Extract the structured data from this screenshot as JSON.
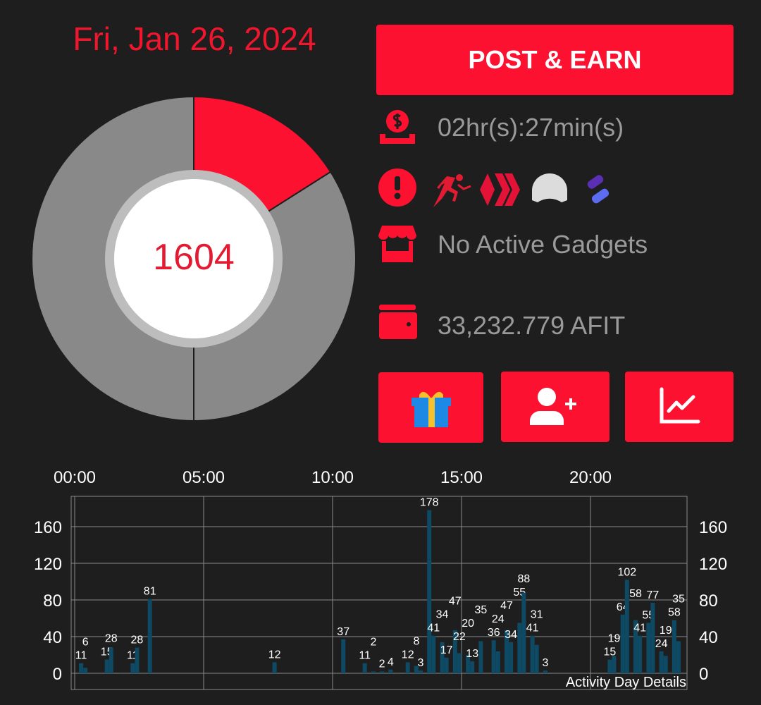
{
  "header": {
    "date": "Fri, Jan 26, 2024"
  },
  "donut": {
    "center_value": "1604",
    "slices": [
      {
        "fraction": 0.16,
        "color": "#fd1130"
      },
      {
        "fraction": 0.34,
        "color": "#898989"
      },
      {
        "fraction": 0.5,
        "color": "#898989"
      }
    ]
  },
  "actions": {
    "post_earn_label": "POST & EARN"
  },
  "status": {
    "timer": "02hr(s):27min(s)",
    "gadgets": "No Active Gadgets",
    "balance": "33,232.779 AFIT",
    "linked_icons": [
      "runner-icon",
      "hive-icon",
      "helmet-icon",
      "splinterlands-icon"
    ]
  },
  "buttons": [
    "gift-icon",
    "add-friend-icon",
    "chart-icon"
  ],
  "colors": {
    "accent": "#fd1130",
    "bar": "#0e4a63",
    "background": "#1e1e1e"
  },
  "chart_data": {
    "type": "bar",
    "title": "Activity Day Details",
    "x_ticks": [
      "00:00",
      "05:00",
      "10:00",
      "15:00",
      "20:00"
    ],
    "y_ticks": [
      0,
      40,
      80,
      120,
      160
    ],
    "ylim": [
      0,
      193
    ],
    "grid": true,
    "points": [
      {
        "t": "00:10",
        "v": 11
      },
      {
        "t": "00:20",
        "v": 6
      },
      {
        "t": "01:10",
        "v": 15
      },
      {
        "t": "01:20",
        "v": 28
      },
      {
        "t": "02:10",
        "v": 11
      },
      {
        "t": "02:20",
        "v": 28
      },
      {
        "t": "02:50",
        "v": 81
      },
      {
        "t": "07:40",
        "v": 12
      },
      {
        "t": "10:20",
        "v": 37
      },
      {
        "t": "11:10",
        "v": 11
      },
      {
        "t": "11:30",
        "v": 2
      },
      {
        "t": "11:50",
        "v": 2
      },
      {
        "t": "12:10",
        "v": 4
      },
      {
        "t": "12:50",
        "v": 12
      },
      {
        "t": "13:10",
        "v": 8
      },
      {
        "t": "13:20",
        "v": 3
      },
      {
        "t": "13:40",
        "v": 178
      },
      {
        "t": "13:50",
        "v": 41
      },
      {
        "t": "14:10",
        "v": 34
      },
      {
        "t": "14:20",
        "v": 17
      },
      {
        "t": "14:40",
        "v": 47
      },
      {
        "t": "14:50",
        "v": 22
      },
      {
        "t": "15:10",
        "v": 20
      },
      {
        "t": "15:20",
        "v": 13
      },
      {
        "t": "15:40",
        "v": 35
      },
      {
        "t": "16:10",
        "v": 36
      },
      {
        "t": "16:20",
        "v": 24
      },
      {
        "t": "16:40",
        "v": 47
      },
      {
        "t": "16:50",
        "v": 34
      },
      {
        "t": "17:10",
        "v": 55
      },
      {
        "t": "17:20",
        "v": 88
      },
      {
        "t": "17:40",
        "v": 41
      },
      {
        "t": "17:50",
        "v": 31
      },
      {
        "t": "18:10",
        "v": 3
      },
      {
        "t": "20:40",
        "v": 15
      },
      {
        "t": "20:50",
        "v": 19
      },
      {
        "t": "21:10",
        "v": 64
      },
      {
        "t": "21:20",
        "v": 102
      },
      {
        "t": "21:40",
        "v": 58
      },
      {
        "t": "21:50",
        "v": 41
      },
      {
        "t": "22:10",
        "v": 55
      },
      {
        "t": "22:20",
        "v": 77
      },
      {
        "t": "22:40",
        "v": 24
      },
      {
        "t": "22:50",
        "v": 19
      },
      {
        "t": "23:10",
        "v": 58
      },
      {
        "t": "23:20",
        "v": 35
      }
    ]
  }
}
